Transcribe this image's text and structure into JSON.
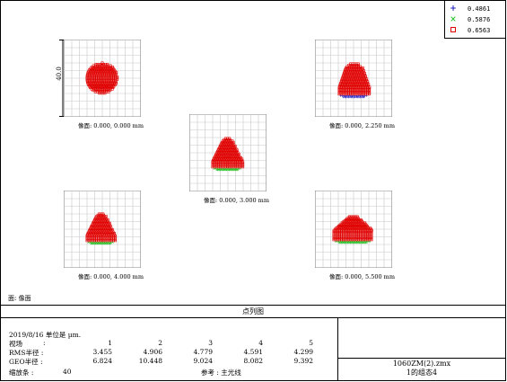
{
  "legend": [
    {
      "symbol": "+",
      "value": "0.4861",
      "color": "#1f1fbf"
    },
    {
      "symbol": "×",
      "value": "0.5876",
      "color": "#22c022"
    },
    {
      "symbol": "□",
      "value": "0.6563",
      "color": "#e00000"
    }
  ],
  "scale_label": "40.0",
  "spots": [
    {
      "caption": "像面: 0.000, 0.000 mm"
    },
    {
      "caption": "像面: 0.000, 2.250 mm"
    },
    {
      "caption": "像面: 0.000, 3.000 mm"
    },
    {
      "caption": "像面: 0.000, 4.000 mm"
    },
    {
      "caption": "像面: 0.000, 5.500 mm"
    }
  ],
  "surface_label": "面: 像面",
  "band_title": "点列图",
  "info": {
    "date_line": "2019/8/16  单位是 µm.",
    "field_label": "视场",
    "field_colon": ":",
    "fields": [
      "1",
      "2",
      "3",
      "4",
      "5"
    ],
    "rms_label": "RMS半径 :",
    "rms": [
      "3.455",
      "4.906",
      "4.779",
      "4.591",
      "4.299"
    ],
    "geo_label": "GEO半径 :",
    "geo": [
      "6.824",
      "10.448",
      "9.024",
      "8.082",
      "9.392"
    ],
    "scale_row_label": "缩放条  :",
    "scale_value": "40",
    "reference": "参考 : 主光线"
  },
  "file": {
    "name": "1060ZM(2).zmx",
    "config": "1的组态4"
  }
}
